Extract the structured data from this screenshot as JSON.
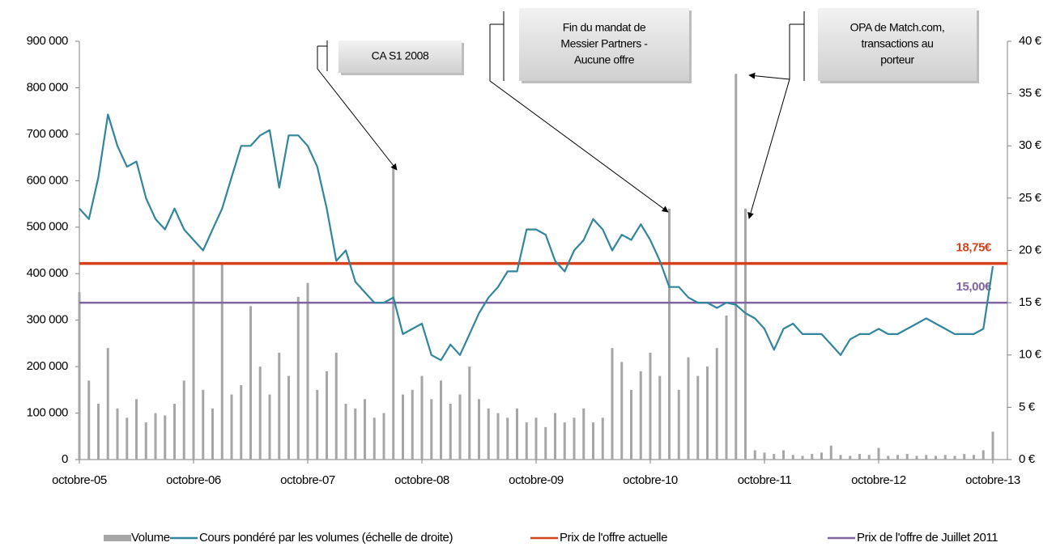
{
  "chart_data": {
    "type": "bar-line",
    "categories": [
      "octobre-05",
      null,
      null,
      null,
      null,
      null,
      null,
      null,
      null,
      null,
      null,
      null,
      "octobre-06",
      null,
      null,
      null,
      null,
      null,
      null,
      null,
      null,
      null,
      null,
      null,
      "octobre-07",
      null,
      null,
      null,
      null,
      null,
      null,
      null,
      null,
      null,
      null,
      null,
      "octobre-08",
      null,
      null,
      null,
      null,
      null,
      null,
      null,
      null,
      null,
      null,
      null,
      "octobre-09",
      null,
      null,
      null,
      null,
      null,
      null,
      null,
      null,
      null,
      null,
      null,
      "octobre-10",
      null,
      null,
      null,
      null,
      null,
      null,
      null,
      null,
      null,
      null,
      null,
      "octobre-11",
      null,
      null,
      null,
      null,
      null,
      null,
      null,
      null,
      null,
      null,
      null,
      "octobre-12",
      null,
      null,
      null,
      null,
      null,
      null,
      null,
      null,
      null,
      null,
      null,
      "octobre-13"
    ],
    "series": [
      {
        "name": "Volume",
        "color": "#a6a6a6",
        "kind": "bar",
        "values": [
          360000,
          170000,
          120000,
          240000,
          110000,
          90000,
          130000,
          80000,
          100000,
          95000,
          120000,
          170000,
          430000,
          150000,
          110000,
          420000,
          140000,
          160000,
          330000,
          200000,
          140000,
          230000,
          180000,
          350000,
          380000,
          150000,
          190000,
          230000,
          120000,
          110000,
          130000,
          90000,
          100000,
          630000,
          140000,
          150000,
          180000,
          130000,
          170000,
          120000,
          140000,
          200000,
          130000,
          110000,
          100000,
          90000,
          110000,
          80000,
          90000,
          70000,
          100000,
          80000,
          90000,
          110000,
          80000,
          90000,
          240000,
          210000,
          150000,
          190000,
          230000,
          180000,
          540000,
          150000,
          220000,
          180000,
          200000,
          240000,
          310000,
          830000,
          540000,
          20000,
          15000,
          12000,
          20000,
          10000,
          8000,
          12000,
          15000,
          30000,
          10000,
          8000,
          12000,
          10000,
          25000,
          8000,
          10000,
          12000,
          8000,
          10000,
          8000,
          10000,
          8000,
          12000,
          10000,
          20000,
          60000
        ]
      },
      {
        "name": "Cours pondéré par les volumes (échelle de droite)",
        "color": "#31859c",
        "kind": "line",
        "axis": "y2",
        "values": [
          24,
          23,
          27,
          33,
          30,
          28,
          28.5,
          25,
          23,
          22,
          24,
          22,
          21,
          20,
          22,
          24,
          27,
          30,
          30,
          31,
          31.5,
          26,
          31,
          31,
          30,
          28,
          24,
          19,
          20,
          17,
          16,
          15,
          15,
          15.5,
          12,
          12.5,
          13,
          10,
          9.5,
          11,
          10,
          12,
          14,
          15.5,
          16.5,
          18,
          18,
          22,
          22,
          21.5,
          19,
          18,
          20,
          21,
          23,
          22,
          20,
          21.5,
          21,
          22.5,
          21,
          19,
          16.5,
          16.5,
          15.5,
          15,
          15,
          14.5,
          15,
          14.8,
          14,
          13.5,
          12.5,
          10.5,
          12.5,
          13,
          12,
          12,
          12,
          11,
          10,
          11.5,
          12,
          12,
          12.5,
          12,
          12,
          12.5,
          13,
          13.5,
          13,
          12.5,
          12,
          12,
          12,
          12.5,
          18.5
        ]
      }
    ],
    "hlines": [
      {
        "name": "Prix de l'offre actuelle",
        "value": 18.75,
        "value_label": "18,75€",
        "color": "#d6401a",
        "axis": "y2"
      },
      {
        "name": "Prix de l'offre de Juillet 2011",
        "value": 15,
        "value_label": "15,00€",
        "color": "#8064a2",
        "axis": "y2"
      }
    ],
    "annotations": [
      {
        "lines": [
          "CA S1 2008"
        ]
      },
      {
        "lines": [
          "Fin du mandat de",
          "Messier Partners -",
          "Aucune offre"
        ]
      },
      {
        "lines": [
          "OPA de Match.com,",
          "transactions au",
          "porteur"
        ]
      }
    ],
    "ylim": [
      0,
      900000
    ],
    "yticks": [
      0,
      {
        "value": 100000,
        "label": "100 000"
      },
      {
        "value": 200000,
        "label": "200 000"
      },
      {
        "value": 300000,
        "label": "300 000"
      },
      {
        "value": 400000,
        "label": "400 000"
      },
      {
        "value": 500000,
        "label": "500 000"
      },
      {
        "value": 600000,
        "label": "600 000"
      },
      {
        "value": 700000,
        "label": "700 000"
      },
      {
        "value": 800000,
        "label": "800 000"
      },
      {
        "value": 900000,
        "label": "900 000"
      }
    ],
    "y2lim": [
      0,
      40
    ],
    "y2ticks": [
      {
        "value": 0,
        "label": "0 €"
      },
      {
        "value": 5,
        "label": "5 €"
      },
      {
        "value": 10,
        "label": "10 €"
      },
      {
        "value": 15,
        "label": "15 €"
      },
      {
        "value": 20,
        "label": "20 €"
      },
      {
        "value": 25,
        "label": "25 €"
      },
      {
        "value": 30,
        "label": "30 €"
      },
      {
        "value": 35,
        "label": "35 €"
      },
      {
        "value": 40,
        "label": "40 €"
      }
    ]
  }
}
